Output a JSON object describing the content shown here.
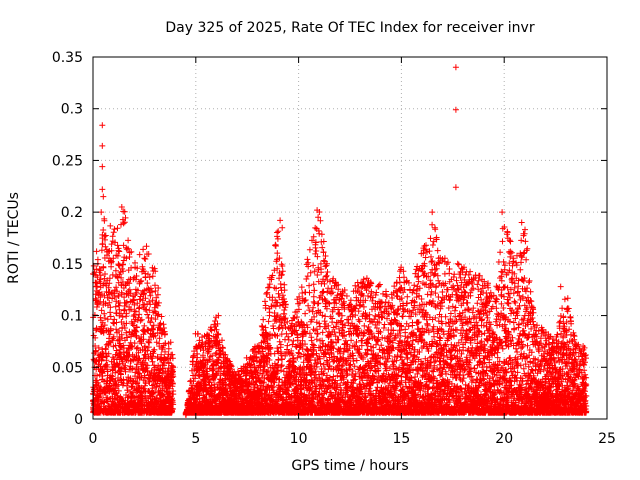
{
  "chart_data": {
    "type": "scatter",
    "title": "Day 325 of 2025, Rate Of TEC Index for receiver invr",
    "xlabel": "GPS time / hours",
    "ylabel": "ROTI / TECUs",
    "xlim": [
      0,
      25
    ],
    "ylim": [
      0,
      0.35
    ],
    "x_ticks": [
      0,
      5,
      10,
      15,
      20,
      25
    ],
    "y_ticks": [
      0,
      0.05,
      0.1,
      0.15,
      0.2,
      0.25,
      0.3,
      0.35
    ],
    "x_tick_labels": [
      "0",
      "5",
      "10",
      "15",
      "20",
      "25"
    ],
    "y_tick_labels": [
      "0",
      "0.05",
      "0.1",
      "0.15",
      "0.2",
      "0.25",
      "0.3",
      "0.35"
    ],
    "grid": true,
    "marker": "+",
    "marker_color": "#ff0000",
    "data_gap_hours": [
      3.9,
      4.5
    ],
    "data_end_hour": 24.0,
    "envelope_hours": [
      0.0,
      0.5,
      1.0,
      1.5,
      2.0,
      2.5,
      3.0,
      3.5,
      4.0,
      4.5,
      5.0,
      5.5,
      6.0,
      6.5,
      7.0,
      7.5,
      8.0,
      8.5,
      9.0,
      9.5,
      10.0,
      10.5,
      11.0,
      11.5,
      12.0,
      12.5,
      13.0,
      13.5,
      14.0,
      14.5,
      15.0,
      15.5,
      16.0,
      16.5,
      17.0,
      17.5,
      18.0,
      18.5,
      19.0,
      19.5,
      20.0,
      20.5,
      21.0,
      21.5,
      22.0,
      22.5,
      23.0,
      23.5,
      24.0
    ],
    "envelope_max_roti": [
      0.145,
      0.2,
      0.185,
      0.205,
      0.15,
      0.167,
      0.15,
      0.085,
      0.07,
      0.0,
      0.085,
      0.08,
      0.1,
      0.06,
      0.045,
      0.06,
      0.075,
      0.13,
      0.192,
      0.09,
      0.12,
      0.16,
      0.203,
      0.14,
      0.13,
      0.12,
      0.14,
      0.135,
      0.13,
      0.12,
      0.15,
      0.13,
      0.17,
      0.2,
      0.16,
      0.155,
      0.15,
      0.14,
      0.14,
      0.12,
      0.2,
      0.155,
      0.19,
      0.095,
      0.085,
      0.075,
      0.128,
      0.075,
      0.07
    ],
    "outliers": [
      {
        "x": 0.45,
        "y": 0.284
      },
      {
        "x": 0.45,
        "y": 0.264
      },
      {
        "x": 0.45,
        "y": 0.244
      },
      {
        "x": 0.45,
        "y": 0.222
      },
      {
        "x": 0.5,
        "y": 0.215
      },
      {
        "x": 0.4,
        "y": 0.2
      },
      {
        "x": 1.4,
        "y": 0.205
      },
      {
        "x": 2.6,
        "y": 0.167
      },
      {
        "x": 9.1,
        "y": 0.192
      },
      {
        "x": 9.2,
        "y": 0.185
      },
      {
        "x": 10.9,
        "y": 0.202
      },
      {
        "x": 10.95,
        "y": 0.195
      },
      {
        "x": 16.5,
        "y": 0.2
      },
      {
        "x": 17.65,
        "y": 0.34
      },
      {
        "x": 17.65,
        "y": 0.299
      },
      {
        "x": 17.65,
        "y": 0.224
      },
      {
        "x": 19.9,
        "y": 0.2
      },
      {
        "x": 20.85,
        "y": 0.19
      },
      {
        "x": 6.1,
        "y": 0.1
      },
      {
        "x": 22.75,
        "y": 0.128
      }
    ]
  }
}
